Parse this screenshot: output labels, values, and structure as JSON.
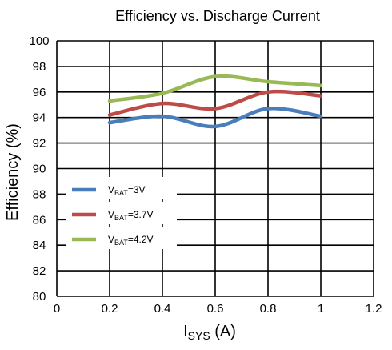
{
  "chart_data": {
    "type": "line",
    "title": "Efficiency vs. Discharge Current",
    "xlabel": {
      "main": "I",
      "sub": "SYS",
      "unit": " (A)"
    },
    "ylabel": "Efficiency (%)",
    "xlim": [
      0,
      1.2
    ],
    "ylim": [
      80,
      100
    ],
    "x_ticks": [
      "0",
      "0.2",
      "0.4",
      "0.6",
      "0.8",
      "1",
      "1.2"
    ],
    "y_ticks": [
      "80",
      "82",
      "84",
      "86",
      "88",
      "90",
      "92",
      "94",
      "96",
      "98",
      "100"
    ],
    "grid": "horizontal and vertical",
    "legend_position": "bottom-left",
    "series": [
      {
        "name": {
          "main": "V",
          "sub": "BAT",
          "rest": "=3V"
        },
        "color": "#4a7ebb",
        "x": [
          0.2,
          0.4,
          0.6,
          0.8,
          1.0
        ],
        "y": [
          93.6,
          94.1,
          93.3,
          94.7,
          94.1
        ]
      },
      {
        "name": {
          "main": "V",
          "sub": "BAT",
          "rest": "=3.7V"
        },
        "color": "#be4b48",
        "x": [
          0.2,
          0.4,
          0.6,
          0.8,
          1.0
        ],
        "y": [
          94.2,
          95.1,
          94.7,
          96.0,
          95.7
        ]
      },
      {
        "name": {
          "main": "V",
          "sub": "BAT",
          "rest": "=4.2V"
        },
        "color": "#98b954",
        "x": [
          0.2,
          0.4,
          0.6,
          0.8,
          1.0
        ],
        "y": [
          95.3,
          95.9,
          97.2,
          96.8,
          96.5
        ]
      }
    ]
  }
}
